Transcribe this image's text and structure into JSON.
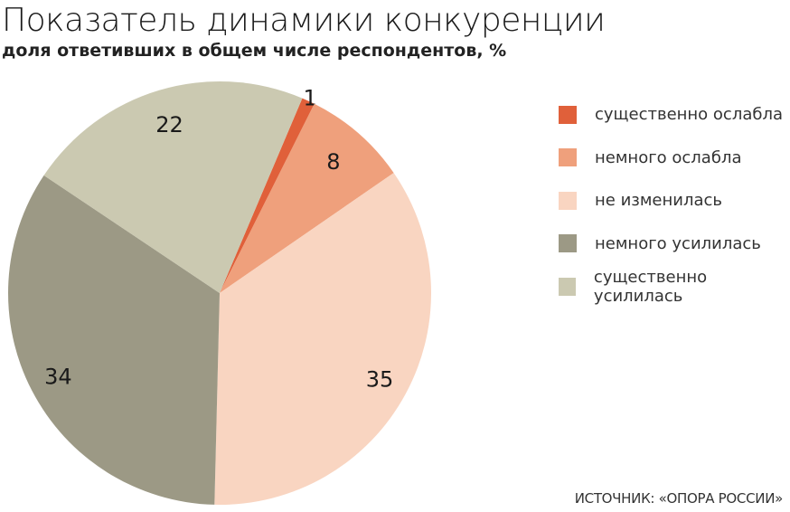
{
  "chart_data": {
    "type": "pie",
    "title": "Показатель динамики конкуренции",
    "subtitle": "доля ответивших в общем числе респондентов, %",
    "categories": [
      "существенно ослабла",
      "немного ослабла",
      "не изменилась",
      "немного усилилась",
      "существенно усилилась"
    ],
    "values": [
      1,
      8,
      35,
      34,
      22
    ],
    "data_labels": [
      "1",
      "8",
      "35",
      "34",
      "22"
    ],
    "colors": [
      "#e0603a",
      "#efa07c",
      "#f9d5c1",
      "#9c9985",
      "#cbc9b1"
    ],
    "legend_position": "right",
    "source": "ИСТОЧНИК: «ОПОРА РОССИИ»"
  }
}
